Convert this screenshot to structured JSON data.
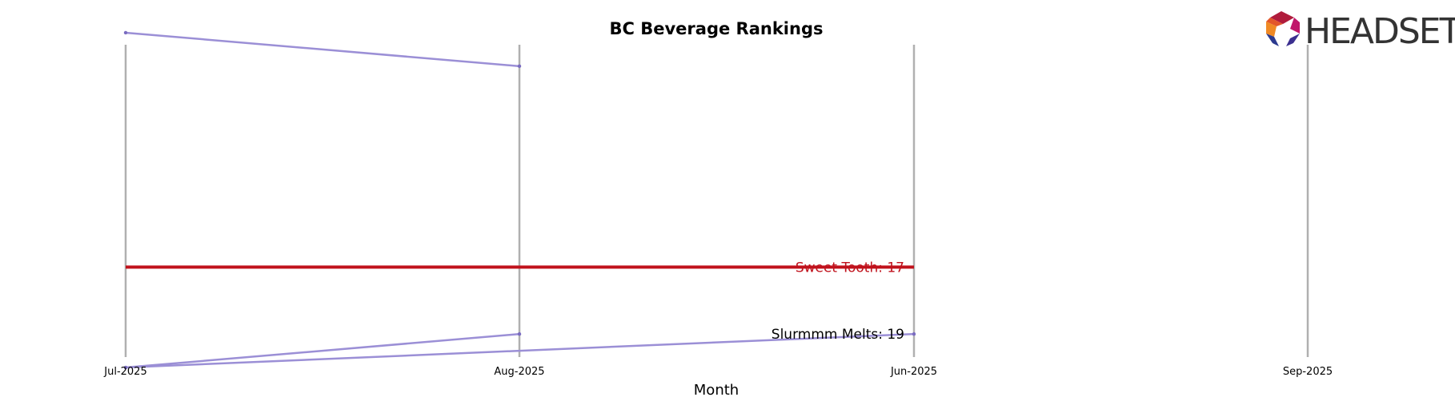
{
  "chart_data": {
    "type": "line",
    "title": "BC Beverage Rankings",
    "xlabel": "Month",
    "ylabel": "",
    "categories": [
      "Jul-2025",
      "Aug-2025",
      "Jun-2025",
      "Sep-2025"
    ],
    "ylim": [
      9.5,
      20.5
    ],
    "y_inverted": true,
    "grid": "vertical",
    "series": [
      {
        "name": "Sweet Tooth",
        "values": [
          17,
          17,
          17,
          null
        ],
        "highlight": true,
        "color": "#c0121c",
        "label": "Sweet Tooth: 17"
      },
      {
        "name": "Slurmmm Melts",
        "values": [
          20,
          null,
          19,
          null
        ],
        "highlight": false,
        "color": "#000000",
        "label": "Slurmmm Melts: 19"
      },
      {
        "name": "",
        "values": [
          10,
          11,
          null,
          null
        ],
        "highlight": false
      },
      {
        "name": "",
        "values": [
          20,
          19,
          null,
          null
        ],
        "highlight": false
      }
    ],
    "other_color": "#9b8fd6",
    "grid_color": "#b0b0b0"
  },
  "logo": {
    "text": "HEADSET"
  }
}
